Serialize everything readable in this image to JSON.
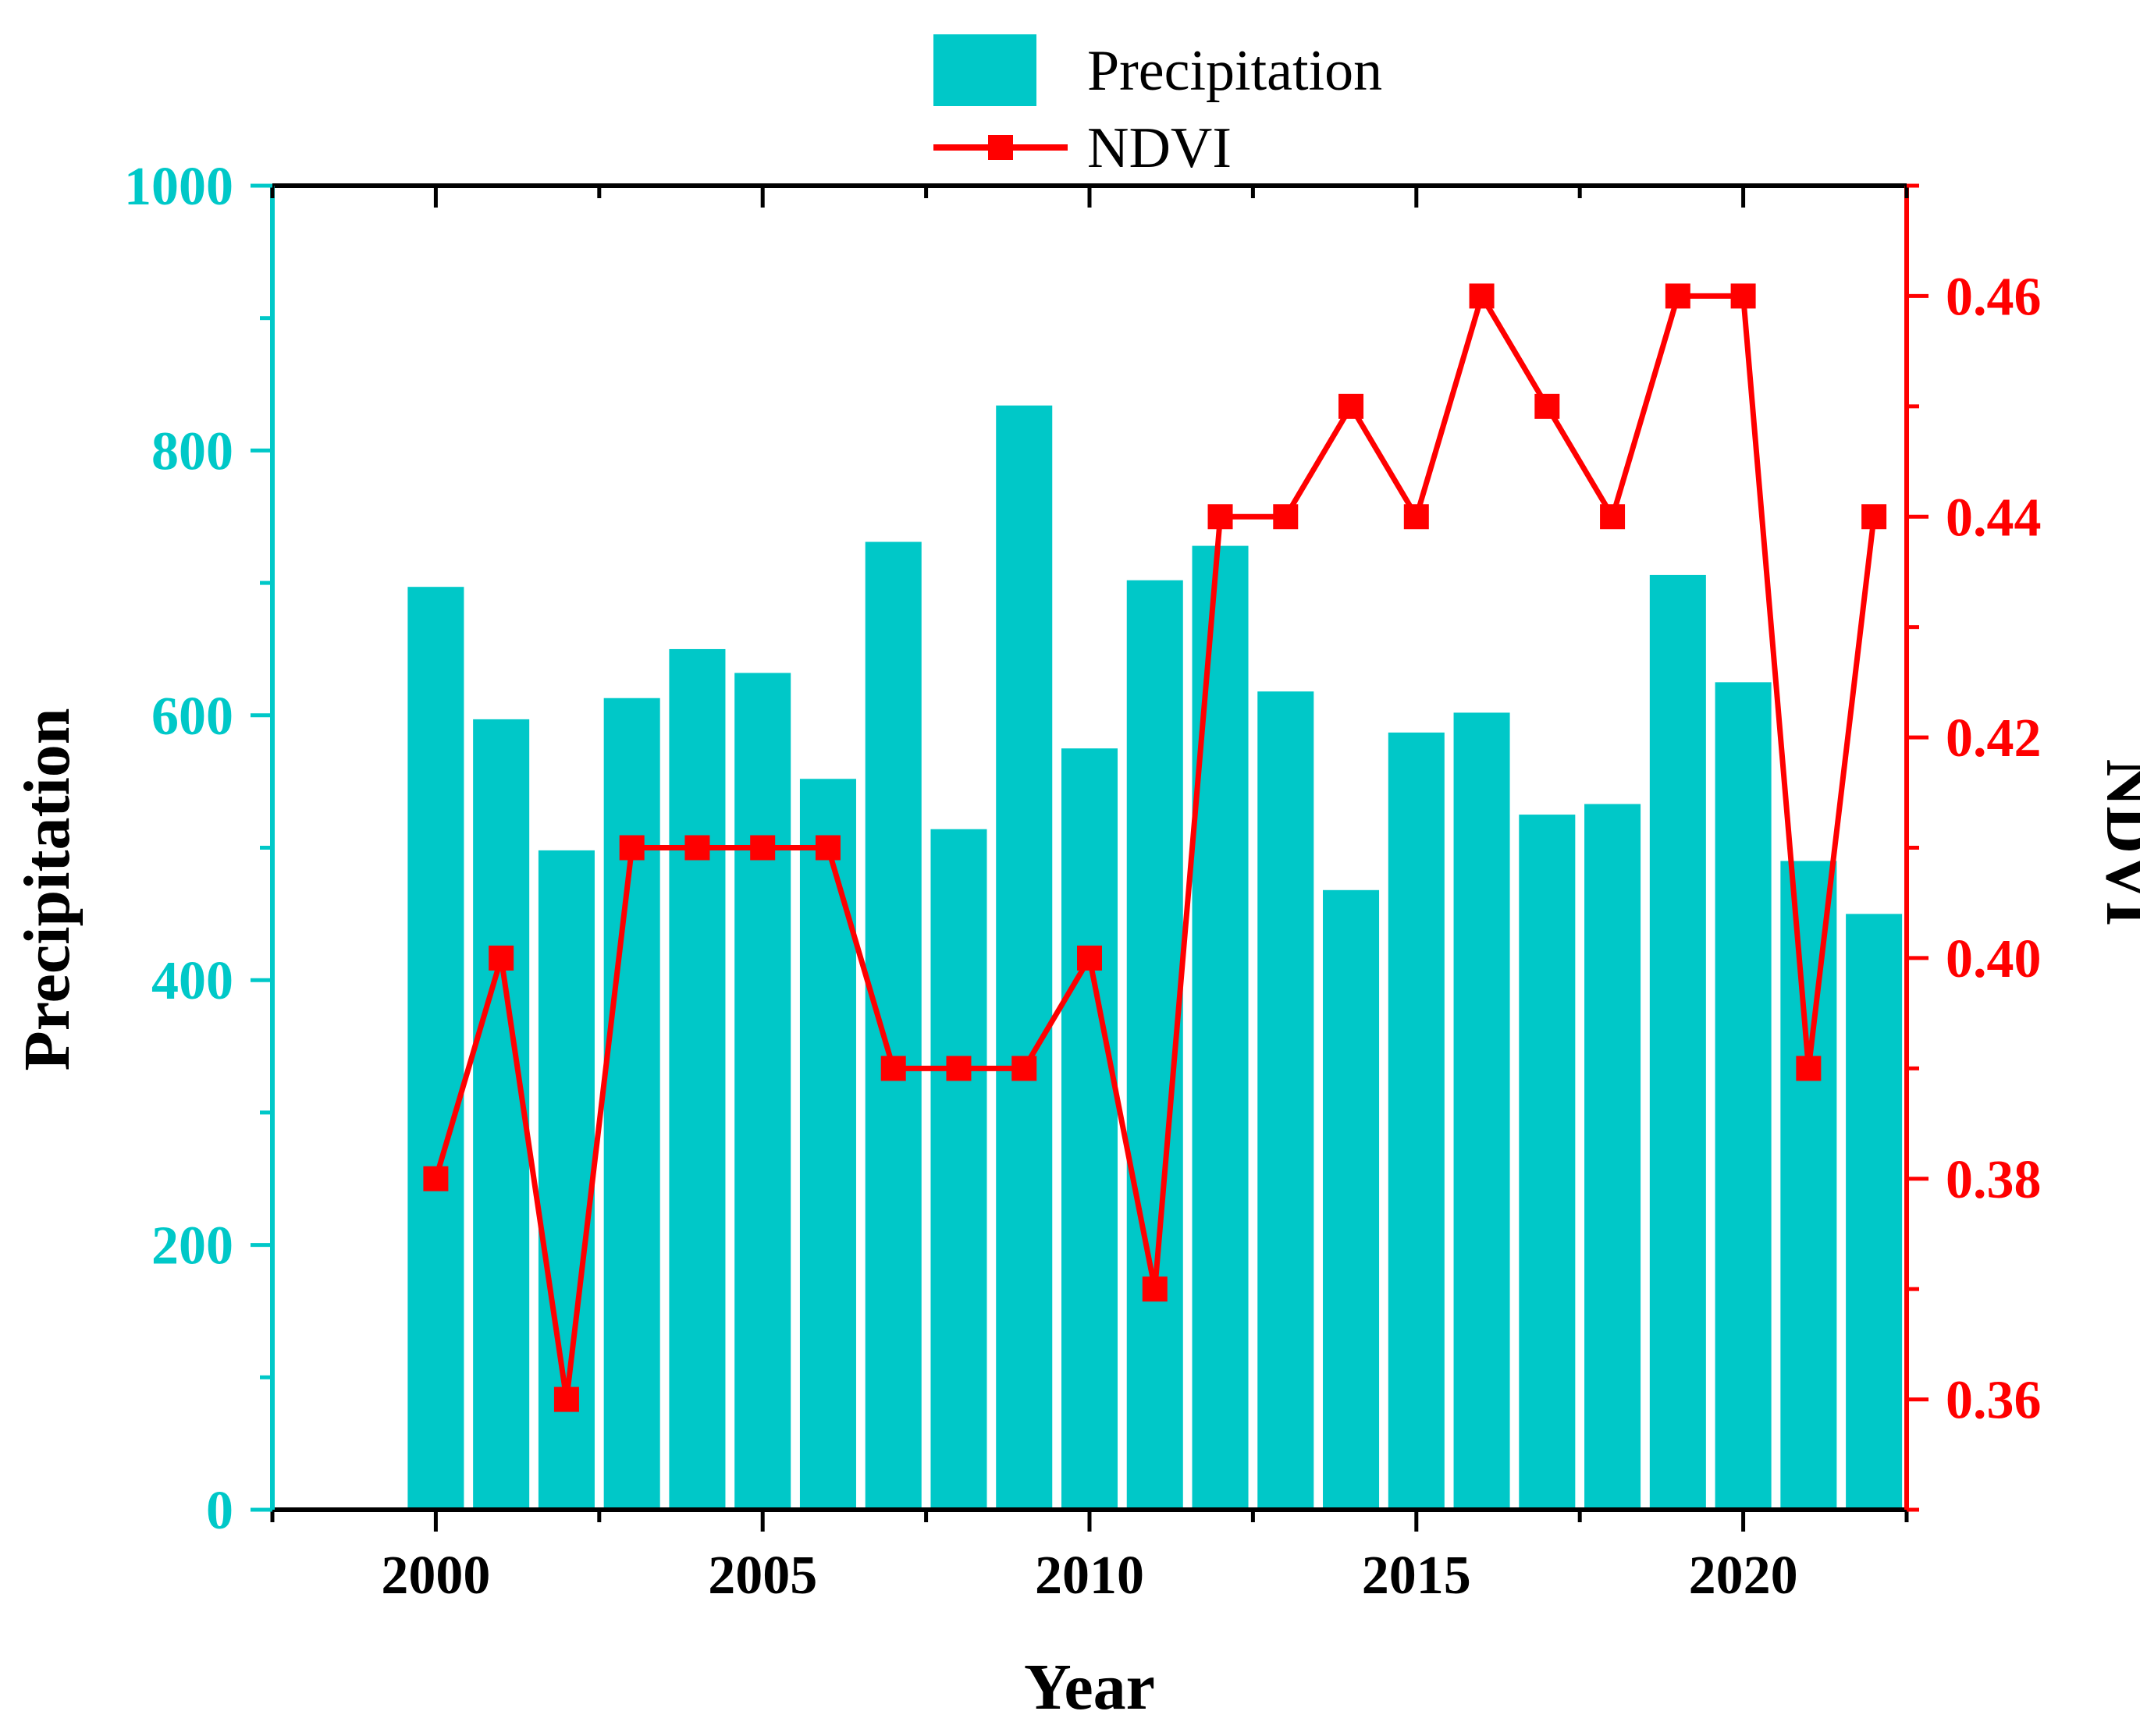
{
  "chart_data": {
    "type": "bar+line",
    "title": "",
    "x": [
      2000,
      2001,
      2002,
      2003,
      2004,
      2005,
      2006,
      2007,
      2008,
      2009,
      2010,
      2011,
      2012,
      2013,
      2014,
      2015,
      2016,
      2017,
      2018,
      2019,
      2020,
      2021,
      2022
    ],
    "xlabel": "Year",
    "xticks": [
      "2000",
      "2005",
      "2010",
      "2015",
      "2020"
    ],
    "xlim": [
      1997.5,
      2022.5
    ],
    "series": [
      {
        "name": "Precipitation",
        "type": "bar",
        "axis": "left",
        "color": "#00C8C8",
        "values": [
          697,
          597,
          498,
          613,
          650,
          632,
          552,
          731,
          514,
          834,
          575,
          702,
          728,
          618,
          468,
          587,
          602,
          525,
          533,
          706,
          625,
          490,
          450
        ]
      },
      {
        "name": "NDVI",
        "type": "line",
        "axis": "right",
        "color": "#FF0000",
        "marker": "square",
        "values": [
          0.38,
          0.4,
          0.36,
          0.41,
          0.41,
          0.41,
          0.41,
          0.39,
          0.39,
          0.39,
          0.4,
          0.37,
          0.44,
          0.44,
          0.45,
          0.44,
          0.46,
          0.45,
          0.44,
          0.46,
          0.46,
          0.39,
          0.44
        ]
      }
    ],
    "y_left": {
      "label": "Precipitation",
      "range": [
        0,
        1000
      ],
      "ticks": [
        "0",
        "200",
        "400",
        "600",
        "800",
        "1000"
      ],
      "color": "#00C8C8"
    },
    "y_right": {
      "label": "NDVI",
      "range": [
        0.35,
        0.47
      ],
      "ticks": [
        "0.36",
        "0.38",
        "0.40",
        "0.42",
        "0.44",
        "0.46"
      ],
      "color": "#FF0000"
    },
    "legend": {
      "position": "top-center",
      "entries": [
        "Precipitation",
        "NDVI"
      ]
    }
  }
}
